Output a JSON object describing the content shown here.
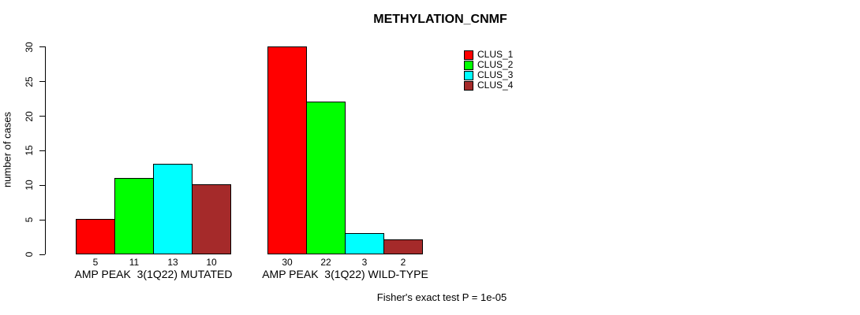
{
  "chart_data": {
    "type": "bar",
    "title": "METHYLATION_CNMF",
    "xlabel": "",
    "ylabel": "number of cases",
    "ylim": [
      0,
      30
    ],
    "yticks": [
      0,
      5,
      10,
      15,
      20,
      25,
      30
    ],
    "grid": false,
    "legend_position": "top-right",
    "legend": [
      {
        "label": "CLUS_1",
        "color": "#FF0000"
      },
      {
        "label": "CLUS_2",
        "color": "#00FF00"
      },
      {
        "label": "CLUS_3",
        "color": "#00FFFF"
      },
      {
        "label": "CLUS_4",
        "color": "#A52A2A"
      }
    ],
    "groups": [
      {
        "label": "AMP PEAK  3(1Q22) MUTATED",
        "values": [
          5,
          11,
          13,
          10
        ]
      },
      {
        "label": "AMP PEAK  3(1Q22) WILD-TYPE",
        "values": [
          30,
          22,
          3,
          2
        ]
      }
    ],
    "bar_value_labels_shown": true,
    "annotation": "Fisher's exact test P = 1e-05"
  }
}
